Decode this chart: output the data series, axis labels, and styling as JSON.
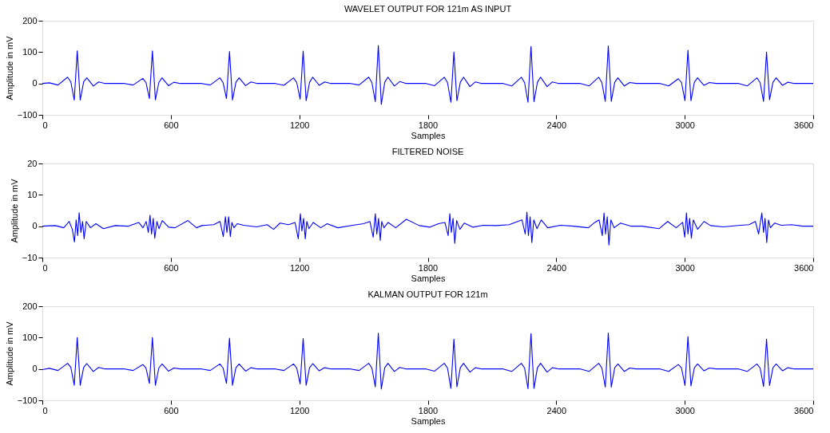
{
  "chart_data": [
    {
      "type": "line",
      "title": "WAVELET OUTPUT FOR 121m AS INPUT",
      "xlabel": "Samples",
      "ylabel": "Amplitude in mV",
      "xlim": [
        0,
        3600
      ],
      "ylim": [
        -100,
        200
      ],
      "xticks": [
        0,
        600,
        1200,
        1800,
        2400,
        3000,
        3600
      ],
      "yticks": [
        -100,
        0,
        100,
        200
      ],
      "grid": false,
      "x": [
        0,
        33,
        73,
        118,
        133,
        149,
        163,
        177,
        193,
        208,
        238,
        263,
        293,
        384,
        424,
        469,
        484,
        500,
        514,
        528,
        544,
        559,
        589,
        614,
        644,
        744,
        784,
        829,
        844,
        860,
        874,
        888,
        904,
        919,
        949,
        974,
        1004,
        1088,
        1128,
        1173,
        1188,
        1204,
        1218,
        1232,
        1248,
        1263,
        1293,
        1318,
        1348,
        1439,
        1479,
        1524,
        1539,
        1555,
        1569,
        1583,
        1599,
        1614,
        1644,
        1669,
        1699,
        1792,
        1832,
        1877,
        1892,
        1908,
        1922,
        1936,
        1952,
        1967,
        1997,
        2022,
        2052,
        2152,
        2192,
        2237,
        2252,
        2268,
        2282,
        2296,
        2312,
        2327,
        2357,
        2382,
        2412,
        2513,
        2553,
        2598,
        2613,
        2629,
        2643,
        2657,
        2673,
        2688,
        2718,
        2743,
        2773,
        2885,
        2925,
        2970,
        2985,
        3001,
        3015,
        3029,
        3045,
        3060,
        3090,
        3115,
        3145,
        3252,
        3292,
        3337,
        3352,
        3368,
        3382,
        3396,
        3412,
        3427,
        3457,
        3482,
        3512,
        3600
      ],
      "series": [
        {
          "color": "#0000ff",
          "values": [
            0,
            2,
            -5,
            20,
            5,
            -53,
            104,
            -53,
            5,
            18,
            -8,
            5,
            0,
            0,
            -5,
            16,
            3,
            -48,
            104,
            -52,
            3,
            18,
            -7,
            4,
            0,
            0,
            -5,
            18,
            3,
            -48,
            102,
            -53,
            4,
            18,
            -7,
            5,
            0,
            0,
            -6,
            18,
            3,
            -50,
            103,
            -55,
            4,
            20,
            -6,
            5,
            0,
            0,
            -5,
            20,
            3,
            -58,
            121,
            -67,
            4,
            20,
            -8,
            6,
            0,
            0,
            -7,
            20,
            3,
            -60,
            100,
            -55,
            4,
            20,
            -10,
            5,
            0,
            0,
            -8,
            20,
            3,
            -60,
            118,
            -58,
            4,
            20,
            -10,
            5,
            0,
            0,
            -8,
            20,
            3,
            -57,
            120,
            -57,
            4,
            18,
            -8,
            3,
            0,
            0,
            -8,
            15,
            3,
            -55,
            106,
            -55,
            4,
            18,
            -6,
            3,
            0,
            0,
            -8,
            18,
            3,
            -57,
            100,
            -52,
            4,
            18,
            -6,
            4,
            0,
            0
          ]
        }
      ]
    },
    {
      "type": "line",
      "title": "FILTERED NOISE",
      "xlabel": "Samples",
      "ylabel": "Amplitude in mV",
      "xlim": [
        0,
        3600
      ],
      "ylim": [
        -10,
        20
      ],
      "xticks": [
        0,
        600,
        1200,
        1800,
        2400,
        3000,
        3600
      ],
      "yticks": [
        -10,
        0,
        10,
        20
      ],
      "grid": false,
      "x": [
        0,
        60,
        100,
        125,
        140,
        150,
        158,
        165,
        172,
        180,
        188,
        195,
        205,
        225,
        250,
        285,
        340,
        400,
        450,
        470,
        485,
        495,
        503,
        510,
        518,
        525,
        535,
        545,
        560,
        590,
        620,
        680,
        720,
        745,
        800,
        830,
        845,
        855,
        862,
        870,
        878,
        885,
        895,
        910,
        940,
        1000,
        1050,
        1080,
        1110,
        1150,
        1180,
        1195,
        1205,
        1212,
        1220,
        1228,
        1235,
        1245,
        1265,
        1300,
        1330,
        1380,
        1450,
        1500,
        1530,
        1545,
        1555,
        1562,
        1570,
        1578,
        1585,
        1595,
        1615,
        1650,
        1700,
        1760,
        1810,
        1850,
        1880,
        1895,
        1903,
        1910,
        1918,
        1926,
        1935,
        1950,
        1970,
        2010,
        2060,
        2120,
        2180,
        2220,
        2240,
        2255,
        2263,
        2270,
        2278,
        2286,
        2295,
        2310,
        2330,
        2360,
        2420,
        2480,
        2550,
        2580,
        2600,
        2615,
        2623,
        2630,
        2638,
        2646,
        2655,
        2670,
        2700,
        2750,
        2800,
        2880,
        2920,
        2960,
        2990,
        3000,
        3008,
        3015,
        3023,
        3031,
        3040,
        3060,
        3090,
        3120,
        3180,
        3260,
        3300,
        3330,
        3345,
        3360,
        3368,
        3375,
        3383,
        3391,
        3400,
        3420,
        3450,
        3500,
        3550,
        3600
      ],
      "series": [
        {
          "color": "#0000ff",
          "values": [
            0,
            0.2,
            -0.5,
            1.5,
            -1,
            -5,
            2,
            -3,
            4.3,
            -2,
            1.5,
            -4,
            1.5,
            -0.5,
            0.8,
            -0.8,
            0.2,
            0,
            1.2,
            -0.5,
            1.5,
            -2,
            3.5,
            -2.5,
            2.5,
            -3.8,
            1.5,
            -0.8,
            1.8,
            -0.3,
            -0.5,
            1.8,
            -0.5,
            0.2,
            0.5,
            1.5,
            -3.3,
            3,
            -2,
            3,
            -3.3,
            1.2,
            -0.5,
            0.8,
            0.3,
            -0.2,
            0.5,
            -1,
            1,
            0.5,
            1.2,
            -4,
            4,
            -1.5,
            2.5,
            -4,
            1.5,
            -0.8,
            1.2,
            -0.5,
            0.8,
            -0.5,
            0.3,
            0.8,
            1.5,
            -3.5,
            4,
            -2.5,
            2.5,
            -4.5,
            1.5,
            -0.5,
            1.2,
            -0.5,
            2.2,
            0.2,
            -0.3,
            0.8,
            1.2,
            -3,
            4,
            -2,
            2.5,
            -5.5,
            1.8,
            -1,
            1,
            -0.3,
            0.3,
            0.2,
            0.5,
            1.5,
            2,
            -2.5,
            4.5,
            -3,
            3,
            -5.2,
            2,
            -0.8,
            2,
            -0.5,
            0.3,
            0,
            -0.5,
            1.2,
            2,
            -3,
            4.2,
            -2.5,
            3,
            -6,
            2,
            -0.5,
            1,
            0,
            0,
            -0.8,
            1.5,
            -0.5,
            1.2,
            -3.5,
            4.2,
            -2.5,
            2.5,
            -3.8,
            2,
            -1,
            1.5,
            0.2,
            -0.2,
            0.3,
            0.5,
            1.5,
            -2.5,
            4.2,
            -2,
            2.5,
            -5.2,
            2,
            -0.5,
            1,
            0.3,
            0.5,
            0,
            0
          ]
        }
      ]
    },
    {
      "type": "line",
      "title": "KALMAN OUTPUT FOR 121m",
      "xlabel": "Samples",
      "ylabel": "Amplitude in mV",
      "xlim": [
        0,
        3600
      ],
      "ylim": [
        -100,
        200
      ],
      "xticks": [
        0,
        600,
        1200,
        1800,
        2400,
        3000,
        3600
      ],
      "yticks": [
        -100,
        0,
        100,
        200
      ],
      "grid": false,
      "x": [
        0,
        33,
        73,
        118,
        133,
        149,
        163,
        177,
        193,
        208,
        238,
        263,
        293,
        384,
        424,
        469,
        484,
        500,
        514,
        528,
        544,
        559,
        589,
        614,
        644,
        744,
        784,
        829,
        844,
        860,
        874,
        888,
        904,
        919,
        949,
        974,
        1004,
        1088,
        1128,
        1173,
        1188,
        1204,
        1218,
        1232,
        1248,
        1263,
        1293,
        1318,
        1348,
        1439,
        1479,
        1524,
        1539,
        1555,
        1569,
        1583,
        1599,
        1614,
        1644,
        1669,
        1699,
        1792,
        1832,
        1877,
        1892,
        1908,
        1922,
        1936,
        1952,
        1967,
        1997,
        2022,
        2052,
        2152,
        2192,
        2237,
        2252,
        2268,
        2282,
        2296,
        2312,
        2327,
        2357,
        2382,
        2412,
        2513,
        2553,
        2598,
        2613,
        2629,
        2643,
        2657,
        2673,
        2688,
        2718,
        2743,
        2773,
        2885,
        2925,
        2970,
        2985,
        3001,
        3015,
        3029,
        3045,
        3060,
        3090,
        3115,
        3145,
        3252,
        3292,
        3337,
        3352,
        3368,
        3382,
        3396,
        3412,
        3427,
        3457,
        3482,
        3512,
        3600
      ],
      "series": [
        {
          "color": "#0000ff",
          "values": [
            -2,
            2,
            -5,
            18,
            5,
            -52,
            100,
            -52,
            5,
            17,
            -8,
            5,
            0,
            0,
            -5,
            14,
            3,
            -46,
            100,
            -52,
            3,
            16,
            -7,
            3,
            0,
            0,
            -5,
            16,
            3,
            -46,
            98,
            -52,
            4,
            16,
            -7,
            4,
            0,
            0,
            -5,
            16,
            3,
            -48,
            97,
            -52,
            4,
            17,
            -6,
            4,
            0,
            0,
            -5,
            18,
            3,
            -57,
            114,
            -64,
            4,
            18,
            -8,
            5,
            0,
            0,
            -7,
            18,
            3,
            -62,
            95,
            -57,
            4,
            18,
            -10,
            4,
            0,
            0,
            -8,
            18,
            3,
            -63,
            113,
            -62,
            4,
            18,
            -10,
            4,
            0,
            0,
            -8,
            18,
            3,
            -58,
            115,
            -58,
            4,
            16,
            -8,
            3,
            0,
            0,
            -8,
            14,
            3,
            -53,
            103,
            -54,
            4,
            16,
            -6,
            3,
            0,
            0,
            -8,
            16,
            3,
            -56,
            95,
            -53,
            4,
            16,
            -6,
            4,
            0,
            0
          ]
        }
      ]
    }
  ]
}
